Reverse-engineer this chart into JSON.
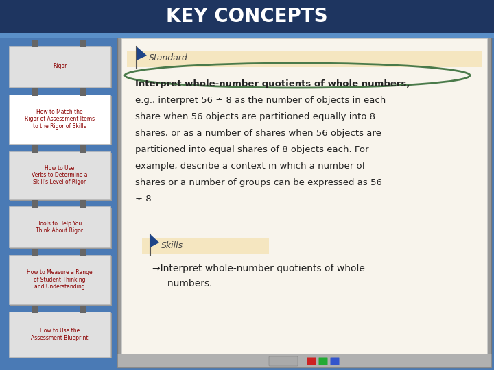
{
  "title": "KEY CONCEPTS",
  "title_color": "#ffffff",
  "title_fontsize": 20,
  "title_bg_color": "#1e3560",
  "slide_bg_color": "#4a7ab5",
  "whiteboard_bg": "#f8f4ec",
  "left_panel_texts": [
    "Rigor",
    "How to Match the\nRigor of Assessment Items\nto the Rigor of Skills",
    "How to Use\nVerbs to Determine a\nSkill's Level of Rigor",
    "Tools to Help You\nThink About Rigor",
    "How to Measure a Range\nof Student Thinking\nand Understanding",
    "How to Use the\nAssessment Blueprint"
  ],
  "left_panel_text_color": "#8b0000",
  "standard_label": "Standard",
  "standard_flag_color": "#1e4488",
  "standard_banner_color": "#f5e6c0",
  "standard_text": "Interpret whole-number quotients of whole numbers,\ne.g., interpret 56 ÷ 8 as the number of objects in each\nshare when 56 objects are partitioned equally into 8\nshares, or as a number of shares when 56 objects are\npartitioned into equal shares of 8 objects each. For\nexample, describe a context in which a number of\nshares or a number of groups can be expressed as 56\n÷ 8.",
  "standard_text_color": "#222222",
  "skills_label": "Skills",
  "skills_flag_color": "#1e4488",
  "skills_banner_color": "#f5e6c0",
  "skills_text_line1": "→Interpret whole-number quotients of whole",
  "skills_text_line2": "     numbers.",
  "skills_text_color": "#222222",
  "oval_color": "#4a7a4a",
  "tray_color": "#b0b0b0",
  "frame_color": "#999999"
}
